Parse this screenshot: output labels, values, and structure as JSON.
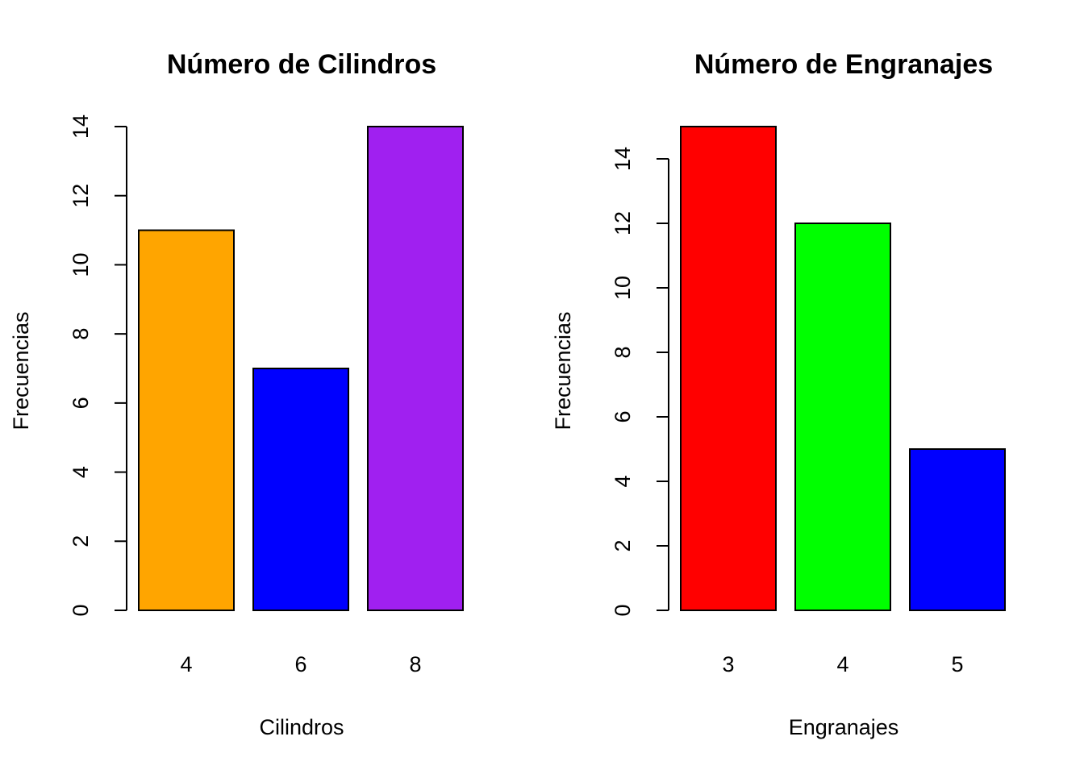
{
  "chart_data": [
    {
      "type": "bar",
      "title": "Número de Cilindros",
      "xlabel": "Cilindros",
      "ylabel": "Frecuencias",
      "categories": [
        "4",
        "6",
        "8"
      ],
      "values": [
        11,
        7,
        14
      ],
      "colors": [
        "#FFA500",
        "#0000FF",
        "#A020F0"
      ],
      "yticks": [
        0,
        2,
        4,
        6,
        8,
        10,
        12,
        14
      ],
      "ylim": [
        0,
        14
      ],
      "grid": false,
      "legend": "none"
    },
    {
      "type": "bar",
      "title": "Número de Engranajes",
      "xlabel": "Engranajes",
      "ylabel": "Frecuencias",
      "categories": [
        "3",
        "4",
        "5"
      ],
      "values": [
        15,
        12,
        5
      ],
      "colors": [
        "#FF0000",
        "#00FF00",
        "#0000FF"
      ],
      "yticks": [
        0,
        2,
        4,
        6,
        8,
        10,
        12,
        14
      ],
      "ylim": [
        0,
        15
      ],
      "grid": false,
      "legend": "none"
    }
  ]
}
